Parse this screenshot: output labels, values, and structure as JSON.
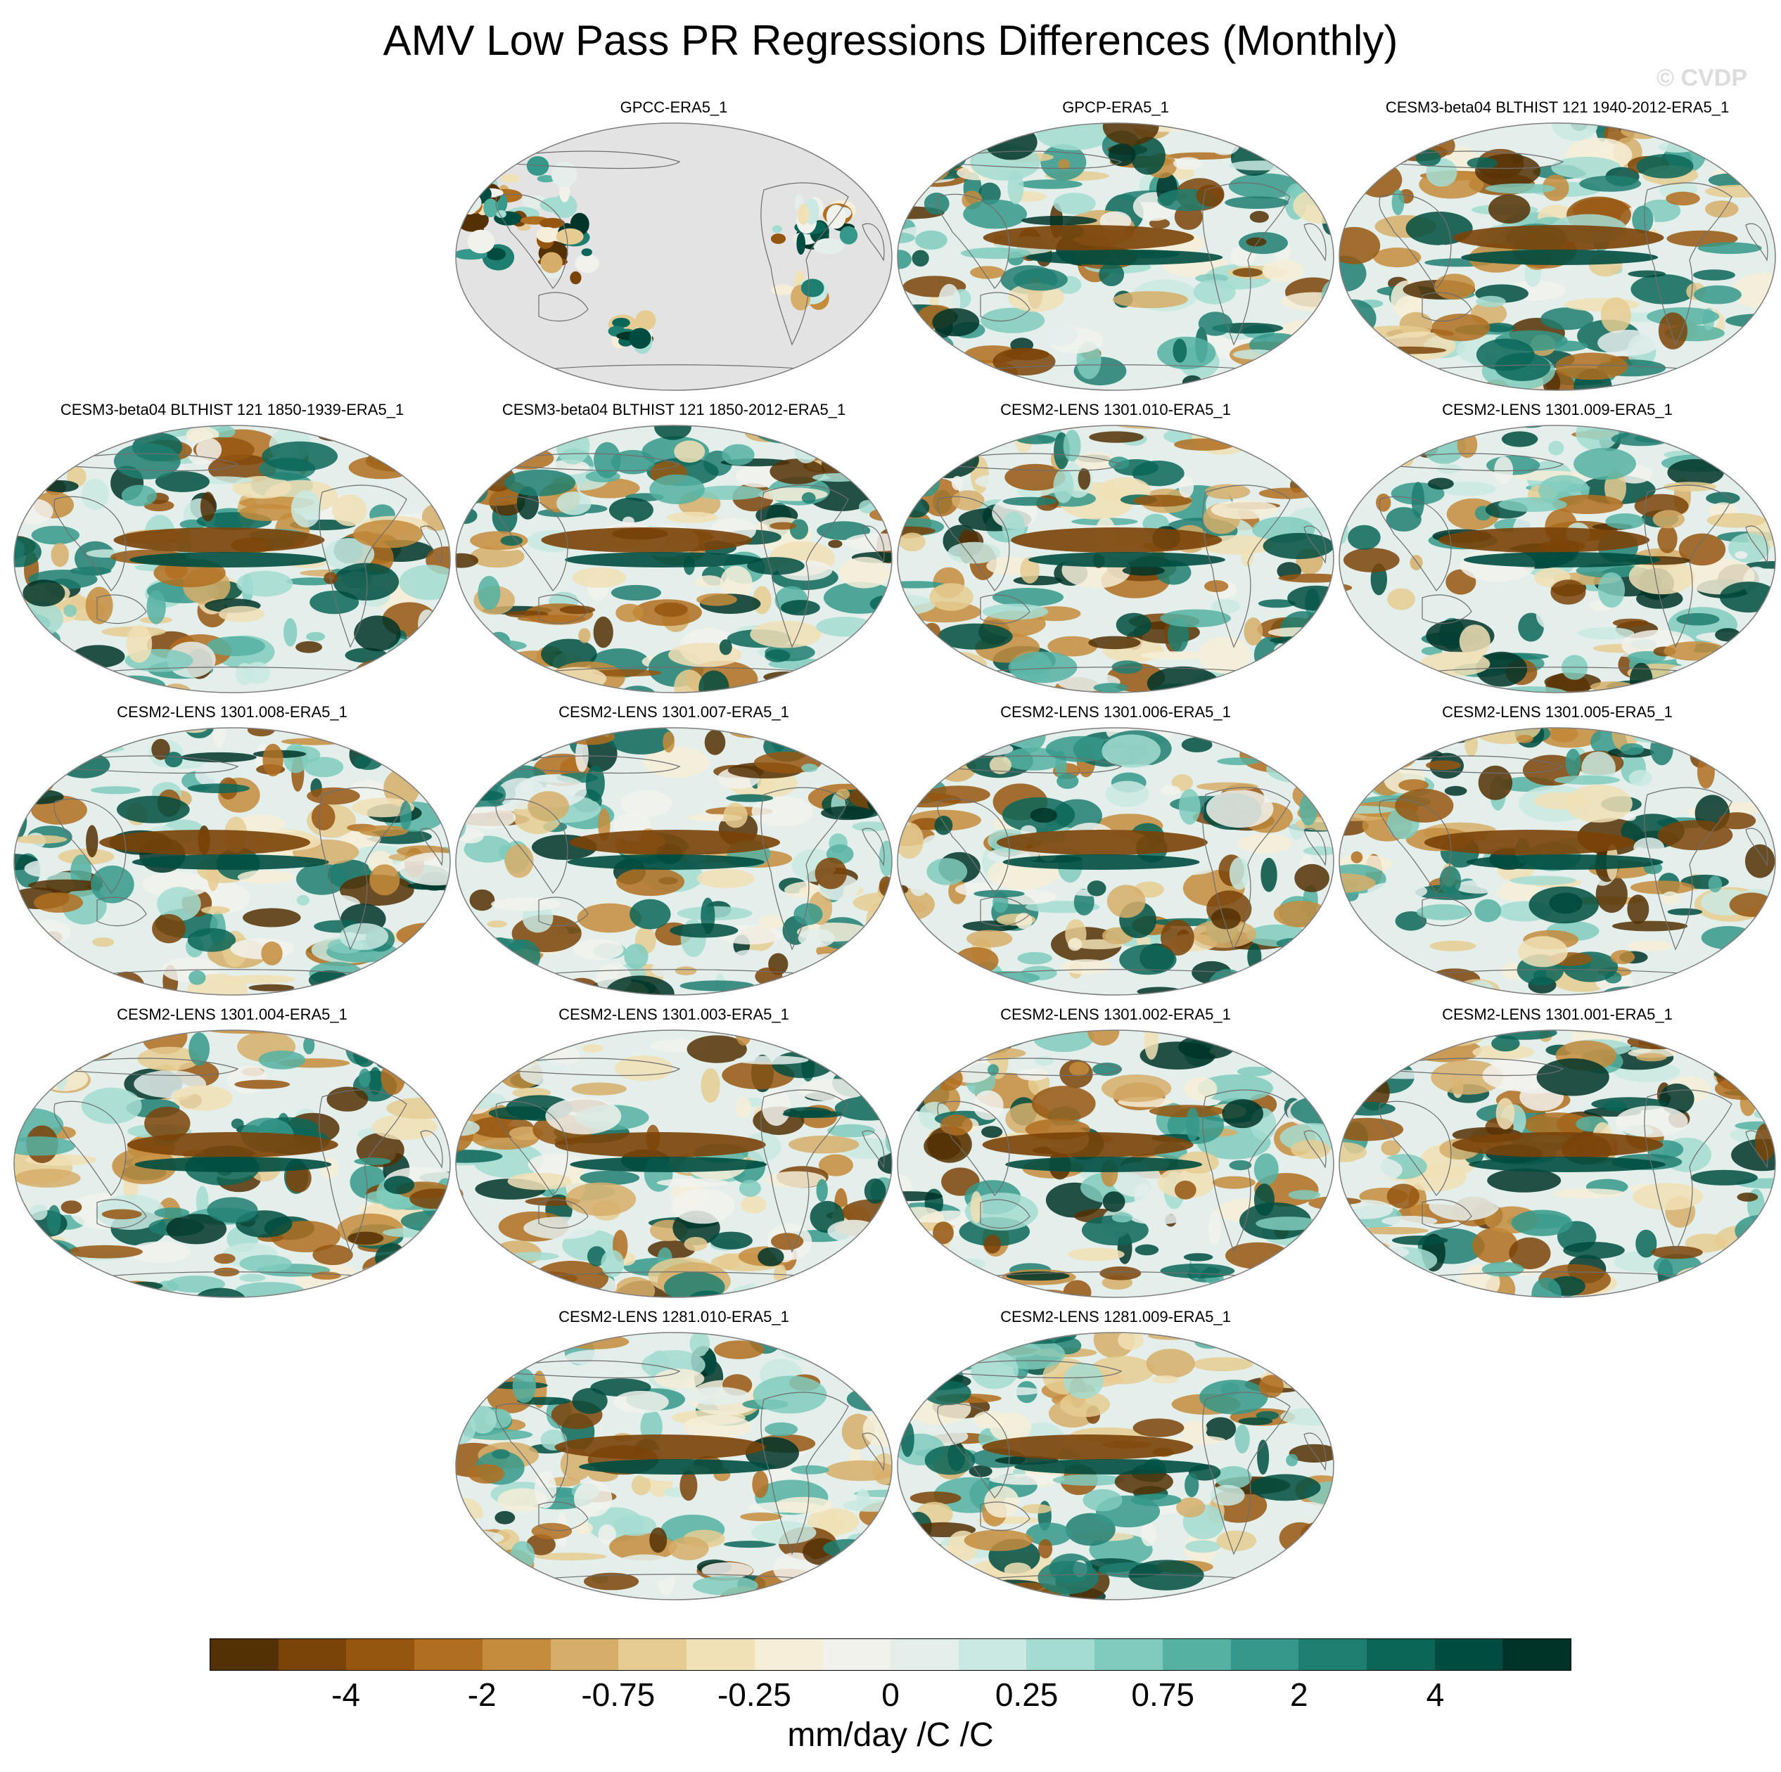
{
  "title": "AMV Low Pass PR Regressions Differences (Monthly)",
  "watermark": "© CVDP",
  "panels": [
    {
      "title": "GPCC-ERA5_1",
      "land_only": true
    },
    {
      "title": "GPCP-ERA5_1"
    },
    {
      "title": "CESM3-beta04 BLTHIST 121 1940-2012-ERA5_1"
    },
    {
      "title": "CESM3-beta04 BLTHIST 121 1850-1939-ERA5_1"
    },
    {
      "title": "CESM3-beta04 BLTHIST 121 1850-2012-ERA5_1"
    },
    {
      "title": "CESM2-LENS 1301.010-ERA5_1"
    },
    {
      "title": "CESM2-LENS 1301.009-ERA5_1"
    },
    {
      "title": "CESM2-LENS 1301.008-ERA5_1"
    },
    {
      "title": "CESM2-LENS 1301.007-ERA5_1"
    },
    {
      "title": "CESM2-LENS 1301.006-ERA5_1"
    },
    {
      "title": "CESM2-LENS 1301.005-ERA5_1"
    },
    {
      "title": "CESM2-LENS 1301.004-ERA5_1"
    },
    {
      "title": "CESM2-LENS 1301.003-ERA5_1"
    },
    {
      "title": "CESM2-LENS 1301.002-ERA5_1"
    },
    {
      "title": "CESM2-LENS 1301.001-ERA5_1"
    },
    {
      "title": "CESM2-LENS 1281.010-ERA5_1"
    },
    {
      "title": "CESM2-LENS 1281.009-ERA5_1"
    }
  ],
  "colorbar": {
    "colors": [
      "#543005",
      "#7a4308",
      "#955610",
      "#b06e20",
      "#c48c3c",
      "#d6ae6a",
      "#e6cc92",
      "#f1e1b6",
      "#f6eed8",
      "#f2f2ed",
      "#e4efec",
      "#c9e9e2",
      "#a5dcd1",
      "#80cbbd",
      "#55b2a2",
      "#35988a",
      "#1e7e70",
      "#0b6658",
      "#004c40",
      "#003428"
    ],
    "labels": [
      "-4",
      "-2",
      "-0.75",
      "-0.25",
      "0",
      "0.25",
      "0.75",
      "2",
      "4"
    ],
    "units": "mm/day /C /C"
  },
  "colors": {
    "land_mask": "#e3e3e3",
    "coastline": "#6e6e6e",
    "border": "#7f7f7f"
  }
}
